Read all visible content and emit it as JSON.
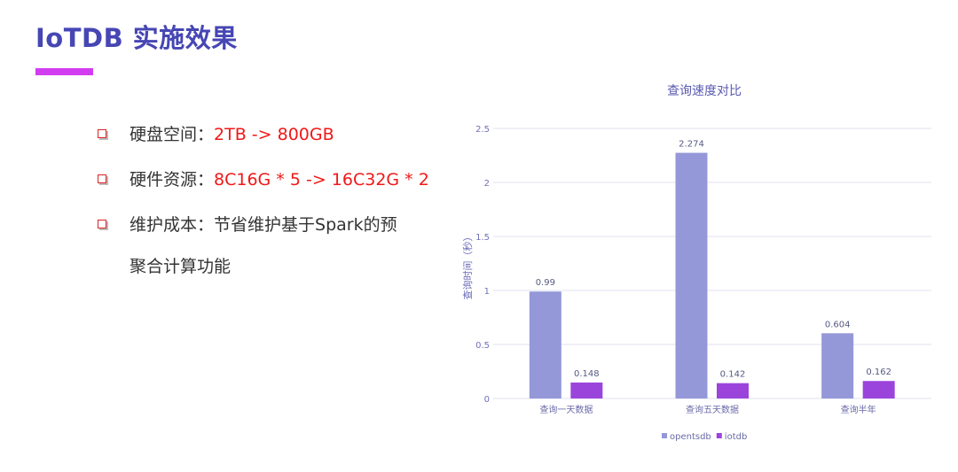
{
  "slide": {
    "title": "IoTDB 实施效果",
    "accent_color": "#d23cf0",
    "bullets": [
      {
        "label": "硬盘空间：",
        "value": "2TB -> 800GB"
      },
      {
        "label": "硬件资源：",
        "value": "8C16G * 5 -> 16C32G * 2"
      },
      {
        "label": "维护成本：",
        "value": "节省维护基于Spark的预"
      }
    ],
    "bullet_continuation": "聚合计算功能"
  },
  "chart_data": {
    "type": "bar",
    "title": "查询速度对比",
    "ylabel": "查询时间（秒）",
    "xlabel": "",
    "categories": [
      "查询一天数据",
      "查询五天数据",
      "查询半年"
    ],
    "series": [
      {
        "name": "opentsdb",
        "values": [
          0.99,
          2.274,
          0.604
        ],
        "color": "#9498d8",
        "labels": [
          "0.99",
          "2.274",
          "0.604"
        ]
      },
      {
        "name": "iotdb",
        "values": [
          0.148,
          0.142,
          0.162
        ],
        "color": "#9b44dc",
        "labels": [
          "0.148",
          "0.142",
          "0.162"
        ]
      }
    ],
    "ylim": [
      0,
      2.5
    ],
    "yticks": [
      "0",
      "0.5",
      "1",
      "1.5",
      "2",
      "2.5"
    ],
    "grid": true,
    "legend": "bottom"
  }
}
